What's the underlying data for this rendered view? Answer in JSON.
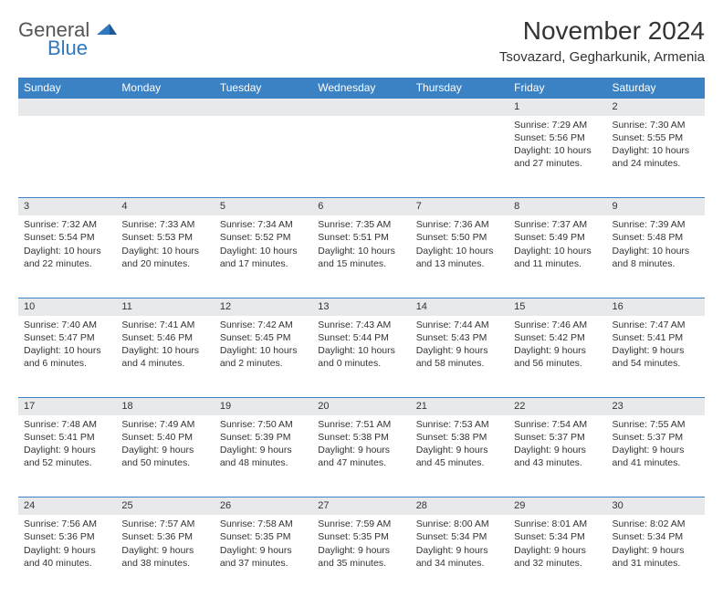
{
  "brand": {
    "name_gray": "General",
    "name_blue": "Blue",
    "tri_color": "#2f78bf"
  },
  "header": {
    "title": "November 2024",
    "location": "Tsovazard, Gegharkunik, Armenia"
  },
  "style": {
    "header_bg": "#3b82c4",
    "header_fg": "#ffffff",
    "daynum_bg": "#e7e9ea",
    "row_border": "#3b82c4",
    "text_color": "#333333",
    "background": "#ffffff"
  },
  "weekdays": [
    "Sunday",
    "Monday",
    "Tuesday",
    "Wednesday",
    "Thursday",
    "Friday",
    "Saturday"
  ],
  "weeks": [
    {
      "nums": [
        "",
        "",
        "",
        "",
        "",
        "1",
        "2"
      ],
      "cells": [
        null,
        null,
        null,
        null,
        null,
        {
          "sunrise": "7:29 AM",
          "sunset": "5:56 PM",
          "daylight": "10 hours and 27 minutes."
        },
        {
          "sunrise": "7:30 AM",
          "sunset": "5:55 PM",
          "daylight": "10 hours and 24 minutes."
        }
      ]
    },
    {
      "nums": [
        "3",
        "4",
        "5",
        "6",
        "7",
        "8",
        "9"
      ],
      "cells": [
        {
          "sunrise": "7:32 AM",
          "sunset": "5:54 PM",
          "daylight": "10 hours and 22 minutes."
        },
        {
          "sunrise": "7:33 AM",
          "sunset": "5:53 PM",
          "daylight": "10 hours and 20 minutes."
        },
        {
          "sunrise": "7:34 AM",
          "sunset": "5:52 PM",
          "daylight": "10 hours and 17 minutes."
        },
        {
          "sunrise": "7:35 AM",
          "sunset": "5:51 PM",
          "daylight": "10 hours and 15 minutes."
        },
        {
          "sunrise": "7:36 AM",
          "sunset": "5:50 PM",
          "daylight": "10 hours and 13 minutes."
        },
        {
          "sunrise": "7:37 AM",
          "sunset": "5:49 PM",
          "daylight": "10 hours and 11 minutes."
        },
        {
          "sunrise": "7:39 AM",
          "sunset": "5:48 PM",
          "daylight": "10 hours and 8 minutes."
        }
      ]
    },
    {
      "nums": [
        "10",
        "11",
        "12",
        "13",
        "14",
        "15",
        "16"
      ],
      "cells": [
        {
          "sunrise": "7:40 AM",
          "sunset": "5:47 PM",
          "daylight": "10 hours and 6 minutes."
        },
        {
          "sunrise": "7:41 AM",
          "sunset": "5:46 PM",
          "daylight": "10 hours and 4 minutes."
        },
        {
          "sunrise": "7:42 AM",
          "sunset": "5:45 PM",
          "daylight": "10 hours and 2 minutes."
        },
        {
          "sunrise": "7:43 AM",
          "sunset": "5:44 PM",
          "daylight": "10 hours and 0 minutes."
        },
        {
          "sunrise": "7:44 AM",
          "sunset": "5:43 PM",
          "daylight": "9 hours and 58 minutes."
        },
        {
          "sunrise": "7:46 AM",
          "sunset": "5:42 PM",
          "daylight": "9 hours and 56 minutes."
        },
        {
          "sunrise": "7:47 AM",
          "sunset": "5:41 PM",
          "daylight": "9 hours and 54 minutes."
        }
      ]
    },
    {
      "nums": [
        "17",
        "18",
        "19",
        "20",
        "21",
        "22",
        "23"
      ],
      "cells": [
        {
          "sunrise": "7:48 AM",
          "sunset": "5:41 PM",
          "daylight": "9 hours and 52 minutes."
        },
        {
          "sunrise": "7:49 AM",
          "sunset": "5:40 PM",
          "daylight": "9 hours and 50 minutes."
        },
        {
          "sunrise": "7:50 AM",
          "sunset": "5:39 PM",
          "daylight": "9 hours and 48 minutes."
        },
        {
          "sunrise": "7:51 AM",
          "sunset": "5:38 PM",
          "daylight": "9 hours and 47 minutes."
        },
        {
          "sunrise": "7:53 AM",
          "sunset": "5:38 PM",
          "daylight": "9 hours and 45 minutes."
        },
        {
          "sunrise": "7:54 AM",
          "sunset": "5:37 PM",
          "daylight": "9 hours and 43 minutes."
        },
        {
          "sunrise": "7:55 AM",
          "sunset": "5:37 PM",
          "daylight": "9 hours and 41 minutes."
        }
      ]
    },
    {
      "nums": [
        "24",
        "25",
        "26",
        "27",
        "28",
        "29",
        "30"
      ],
      "cells": [
        {
          "sunrise": "7:56 AM",
          "sunset": "5:36 PM",
          "daylight": "9 hours and 40 minutes."
        },
        {
          "sunrise": "7:57 AM",
          "sunset": "5:36 PM",
          "daylight": "9 hours and 38 minutes."
        },
        {
          "sunrise": "7:58 AM",
          "sunset": "5:35 PM",
          "daylight": "9 hours and 37 minutes."
        },
        {
          "sunrise": "7:59 AM",
          "sunset": "5:35 PM",
          "daylight": "9 hours and 35 minutes."
        },
        {
          "sunrise": "8:00 AM",
          "sunset": "5:34 PM",
          "daylight": "9 hours and 34 minutes."
        },
        {
          "sunrise": "8:01 AM",
          "sunset": "5:34 PM",
          "daylight": "9 hours and 32 minutes."
        },
        {
          "sunrise": "8:02 AM",
          "sunset": "5:34 PM",
          "daylight": "9 hours and 31 minutes."
        }
      ]
    }
  ],
  "labels": {
    "sunrise": "Sunrise:",
    "sunset": "Sunset:",
    "daylight": "Daylight:"
  }
}
